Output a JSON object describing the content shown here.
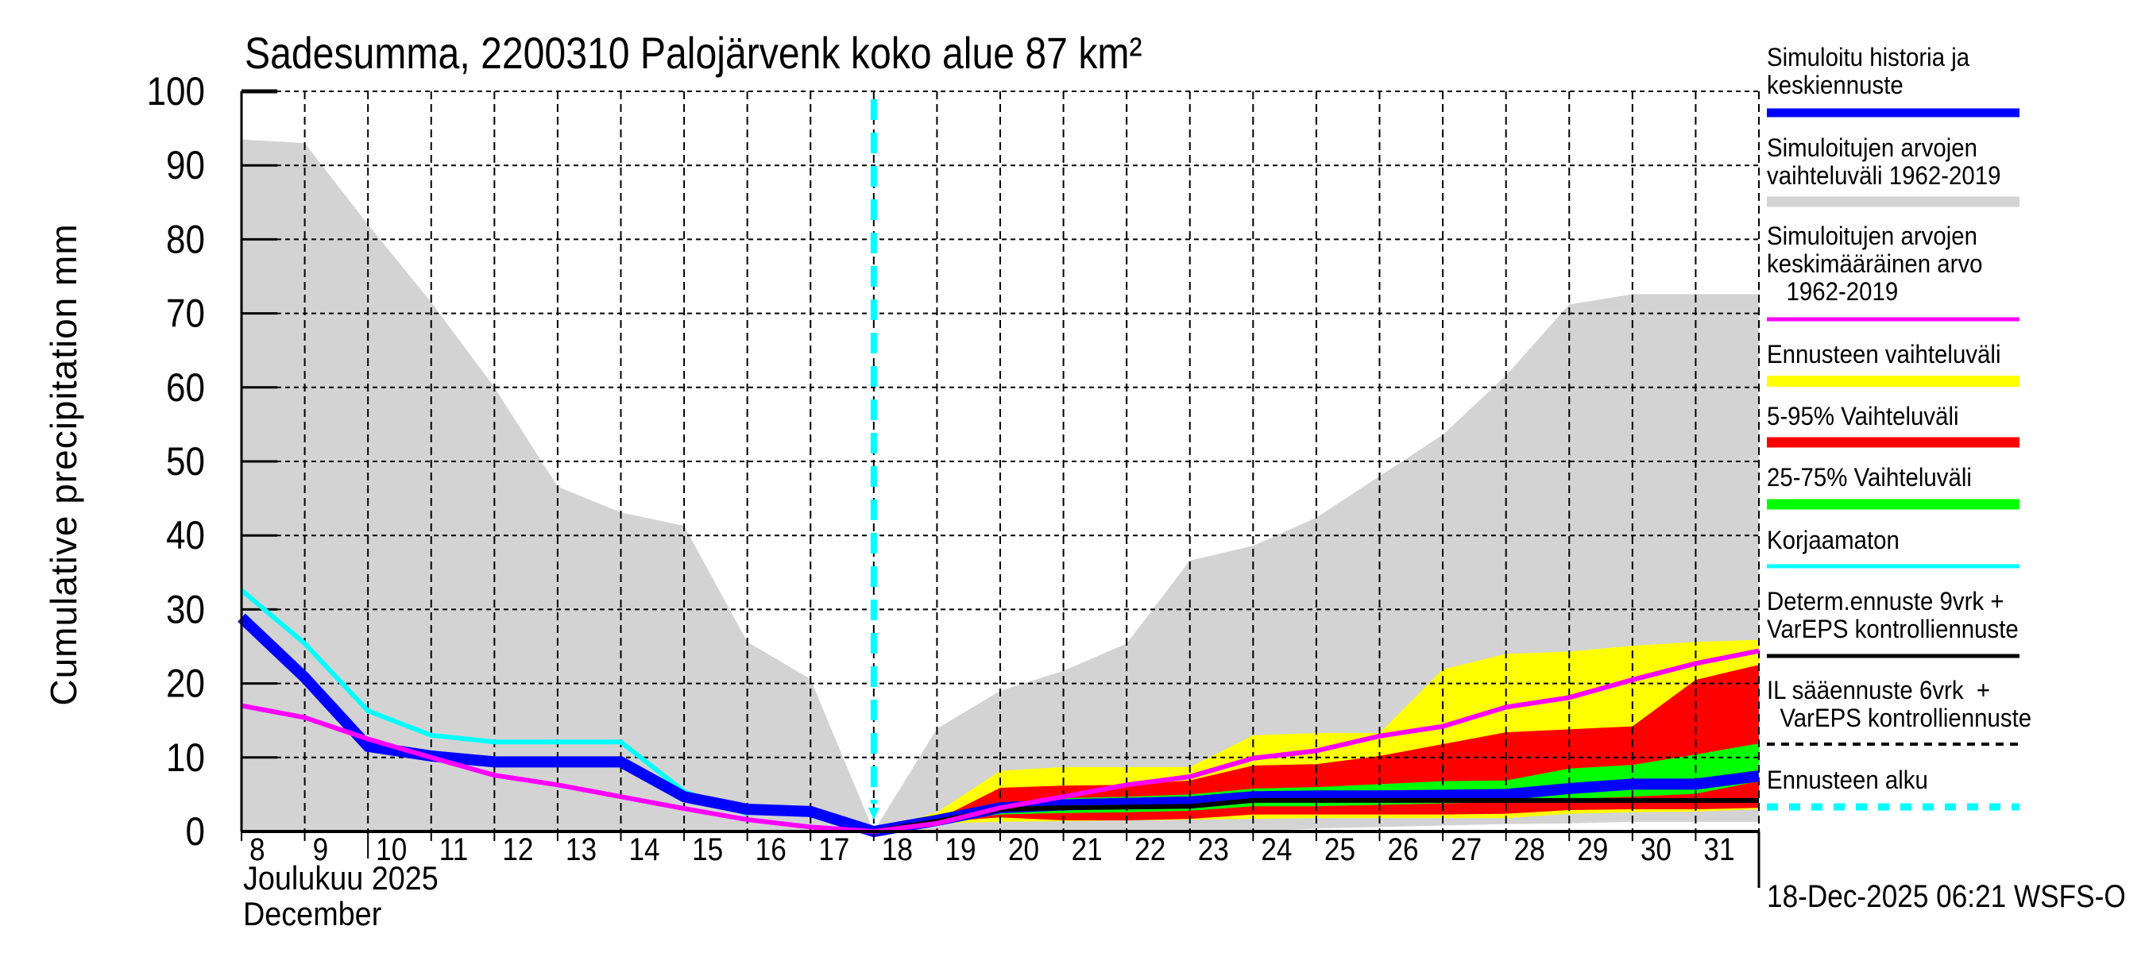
{
  "chart_data": {
    "type": "area",
    "title": "Sadesumma, 2200310 Palojärvenk koko alue 87 km²",
    "ylabel": "Cumulative precipitation   mm",
    "xlabel_line1": "Joulukuu  2025",
    "xlabel_line2": "December",
    "ylim": [
      0,
      100
    ],
    "yticks": [
      0,
      10,
      20,
      30,
      40,
      50,
      60,
      70,
      80,
      90,
      100
    ],
    "xlim": [
      8,
      32
    ],
    "xticks": [
      8,
      9,
      10,
      11,
      12,
      13,
      14,
      15,
      16,
      17,
      18,
      19,
      20,
      21,
      22,
      23,
      24,
      25,
      26,
      27,
      28,
      29,
      30,
      31
    ],
    "grid": true,
    "forecast_start_day": 18,
    "timestamp": "18-Dec-2025 06:21 WSFS-O",
    "legend_position": "right",
    "colors": {
      "history": "#0000ff",
      "hist_range": "#d3d3d3",
      "hist_mean": "#ff00ff",
      "forecast_range": "#ffff00",
      "p5_95": "#ff0000",
      "p25_75": "#00ff00",
      "uncorrected": "#00ffff",
      "determ": "#000000",
      "forecast_start": "#00ffff"
    },
    "legend": [
      {
        "key": "history",
        "lines": [
          "Simuloitu historia ja",
          "keskiennuste"
        ],
        "style": "thick"
      },
      {
        "key": "hist_range",
        "lines": [
          "Simuloitujen arvojen",
          "vaihteluväli 1962-2019"
        ],
        "style": "band"
      },
      {
        "key": "hist_mean",
        "lines": [
          "Simuloitujen arvojen",
          "keskimääräinen arvo",
          "   1962-2019"
        ],
        "style": "line"
      },
      {
        "key": "forecast_range",
        "lines": [
          "Ennusteen vaihteluväli"
        ],
        "style": "band"
      },
      {
        "key": "p5_95",
        "lines": [
          "5-95% Vaihteluväli"
        ],
        "style": "band"
      },
      {
        "key": "p25_75",
        "lines": [
          "25-75% Vaihteluväli"
        ],
        "style": "band"
      },
      {
        "key": "uncorrected",
        "lines": [
          "Korjaamaton"
        ],
        "style": "line"
      },
      {
        "key": "determ",
        "lines": [
          "Determ.ennuste 9vrk +",
          "VarEPS kontrolliennuste"
        ],
        "style": "line"
      },
      {
        "key": "il",
        "lines": [
          "IL sääennuste 6vrk  +",
          "  VarEPS kontrolliennuste"
        ],
        "style": "dashed"
      },
      {
        "key": "forecast_start",
        "lines": [
          "Ennusteen alku"
        ],
        "style": "dotted"
      }
    ],
    "series": {
      "hist_range": {
        "name": "Simuloitujen arvojen vaihteluväli 1962-2019",
        "x": [
          8,
          9,
          10,
          11,
          12,
          13,
          14,
          15,
          16,
          17,
          18,
          19,
          20,
          21,
          22,
          23,
          24,
          25,
          26,
          27,
          28,
          29,
          30,
          31,
          32
        ],
        "upper": [
          93.5,
          93.0,
          82.0,
          71.5,
          60.0,
          46.6,
          43.1,
          41.3,
          25.6,
          20.6,
          0.0,
          13.9,
          19.0,
          21.7,
          25.4,
          36.6,
          38.6,
          42.4,
          48.0,
          53.6,
          61.6,
          71.2,
          72.6,
          72.6,
          72.6
        ],
        "lower": [
          0,
          0,
          0,
          0,
          0,
          0,
          0,
          0,
          0,
          0,
          0,
          0,
          0,
          0,
          0,
          0,
          0,
          0.4,
          0.6,
          0.8,
          1.0,
          1.1,
          1.3,
          1.3,
          1.3
        ]
      },
      "forecast_range": {
        "name": "Ennusteen vaihteluväli",
        "x": [
          18,
          19,
          20,
          21,
          22,
          23,
          24,
          25,
          26,
          27,
          28,
          29,
          30,
          31,
          32
        ],
        "upper": [
          0,
          2.6,
          8.2,
          8.7,
          8.7,
          8.7,
          13.0,
          13.3,
          13.3,
          21.9,
          24.0,
          24.3,
          25.1,
          25.6,
          25.9
        ],
        "lower": [
          0,
          1.1,
          1.3,
          1.4,
          1.5,
          1.6,
          1.7,
          1.8,
          1.8,
          1.8,
          1.8,
          2.4,
          2.6,
          2.7,
          3.0
        ]
      },
      "p5_95": {
        "name": "5-95% Vaihteluväli",
        "x": [
          18,
          19,
          20,
          21,
          22,
          23,
          24,
          25,
          26,
          27,
          28,
          29,
          30,
          31,
          32
        ],
        "upper": [
          0,
          1.6,
          5.9,
          6.2,
          6.3,
          6.9,
          8.9,
          9.1,
          10.2,
          11.8,
          13.4,
          13.8,
          14.2,
          20.5,
          22.5
        ],
        "lower": [
          0,
          1.3,
          1.9,
          1.5,
          1.5,
          1.7,
          2.3,
          2.3,
          2.3,
          2.3,
          2.4,
          2.9,
          3.0,
          3.0,
          3.2
        ]
      },
      "p25_75": {
        "name": "25-75% Vaihteluväli",
        "x": [
          18,
          19,
          20,
          21,
          22,
          23,
          24,
          25,
          26,
          27,
          28,
          29,
          30,
          31,
          32
        ],
        "upper": [
          0,
          1.5,
          3.6,
          4.5,
          4.7,
          5.0,
          5.8,
          6.0,
          6.4,
          6.8,
          6.9,
          8.5,
          9.0,
          10.4,
          11.9
        ],
        "lower": [
          0,
          1.4,
          2.3,
          2.5,
          2.6,
          2.8,
          3.4,
          3.4,
          3.6,
          3.8,
          4.0,
          4.4,
          4.7,
          5.1,
          6.8
        ]
      },
      "history": {
        "name": "Simuloitu historia ja keskiennuste",
        "x": [
          8,
          9,
          10,
          11,
          12,
          13,
          14,
          15,
          16,
          17,
          18,
          19,
          20,
          21,
          22,
          23,
          24,
          25,
          26,
          27,
          28,
          29,
          30,
          31,
          32
        ],
        "y": [
          28.9,
          20.8,
          11.5,
          10.2,
          9.4,
          9.4,
          9.4,
          4.7,
          3.0,
          2.7,
          0.0,
          1.5,
          3.2,
          3.6,
          3.8,
          4.0,
          4.7,
          4.8,
          4.8,
          4.9,
          5.0,
          5.8,
          6.4,
          6.4,
          7.5
        ]
      },
      "hist_mean": {
        "name": "Simuloitujen arvojen keskimääräinen arvo 1962-2019",
        "x": [
          8,
          9,
          10,
          11,
          12,
          13,
          14,
          15,
          16,
          17,
          18,
          19,
          20,
          21,
          22,
          23,
          24,
          25,
          26,
          27,
          28,
          29,
          30,
          31,
          32
        ],
        "y": [
          17.0,
          15.4,
          12.5,
          10.0,
          7.6,
          6.3,
          4.7,
          3.1,
          1.6,
          0.6,
          0.0,
          1.1,
          3.2,
          4.7,
          6.3,
          7.4,
          9.9,
          10.9,
          12.9,
          14.2,
          16.8,
          18.1,
          20.5,
          22.7,
          24.4
        ]
      },
      "uncorrected": {
        "name": "Korjaamaton",
        "x": [
          8,
          9,
          10,
          11,
          12,
          13,
          14,
          15,
          16
        ],
        "y": [
          32.6,
          25.4,
          16.3,
          13.0,
          12.1,
          12.1,
          12.1,
          5.4,
          2.4
        ]
      },
      "determ": {
        "name": "Determ.ennuste 9vrk + VarEPS kontrolliennuste",
        "x": [
          18,
          19,
          20,
          21,
          22,
          23,
          24,
          25,
          26,
          27,
          28,
          29,
          30,
          31,
          32
        ],
        "y": [
          0.0,
          1.4,
          3.0,
          3.2,
          3.3,
          3.4,
          4.2,
          4.2,
          4.2,
          4.2,
          4.2,
          4.2,
          4.2,
          4.2,
          4.2
        ]
      }
    }
  }
}
